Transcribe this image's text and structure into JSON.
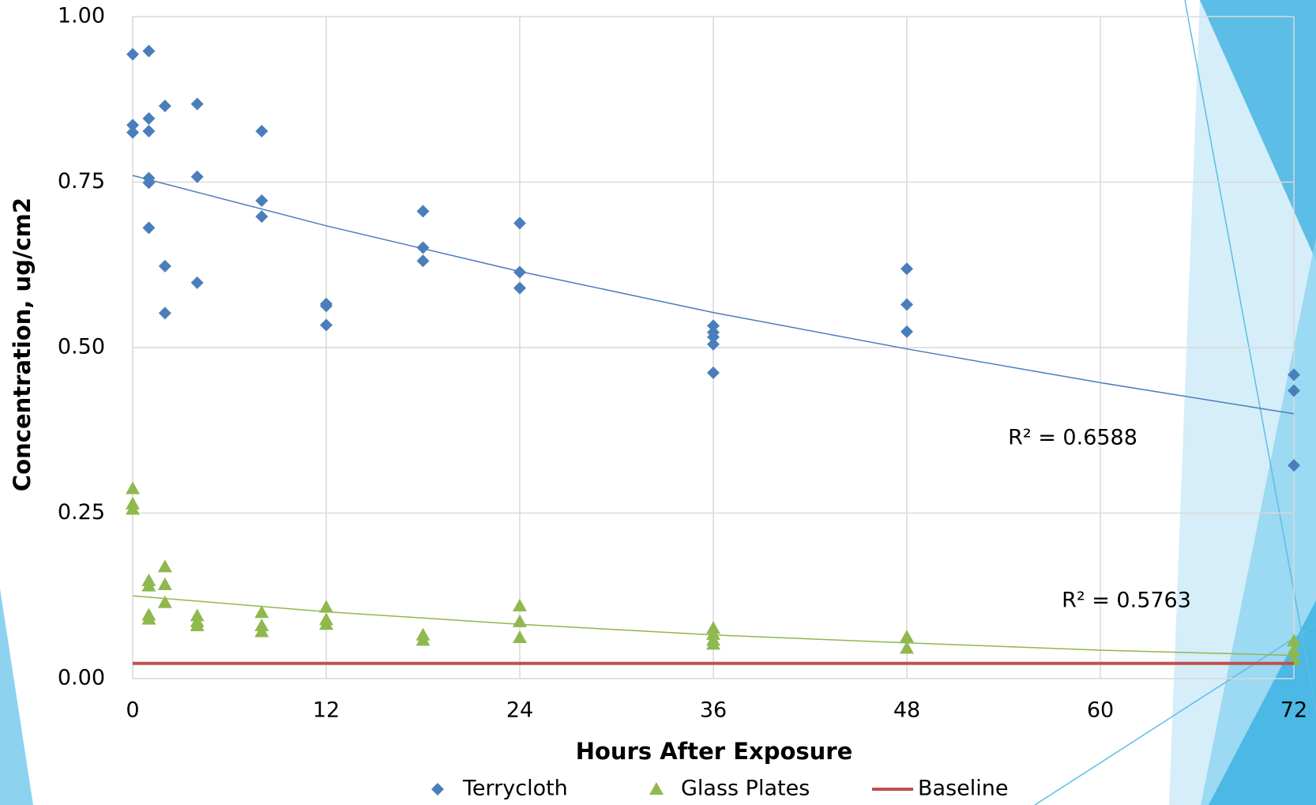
{
  "chart_data": {
    "type": "scatter",
    "xlabel": "Hours After Exposure",
    "ylabel": "Concentration, ug/cm2",
    "xlim": [
      0,
      72
    ],
    "ylim": [
      0,
      1
    ],
    "xticks": [
      0,
      12,
      24,
      36,
      48,
      60,
      72
    ],
    "yticks": [
      {
        "value": 0,
        "label": "0.00"
      },
      {
        "value": 0.25,
        "label": "0.25"
      },
      {
        "value": 0.5,
        "label": "0.50"
      },
      {
        "value": 0.75,
        "label": "0.75"
      },
      {
        "value": 1,
        "label": "1.00"
      }
    ],
    "grid": true,
    "legend": "bottom",
    "series": [
      {
        "name": "Terrycloth",
        "color": "#4a7ebb",
        "marker": "diamond",
        "x": [
          0,
          0,
          0,
          1,
          1,
          1,
          1,
          1,
          1,
          2,
          2,
          2,
          4,
          4,
          4,
          8,
          8,
          8,
          12,
          12,
          12,
          18,
          18,
          18,
          24,
          24,
          24,
          36,
          36,
          36,
          36,
          36,
          48,
          48,
          48,
          72,
          72,
          72
        ],
        "values": [
          0.943,
          0.836,
          0.825,
          0.948,
          0.846,
          0.827,
          0.756,
          0.749,
          0.681,
          0.865,
          0.623,
          0.552,
          0.868,
          0.758,
          0.598,
          0.827,
          0.722,
          0.698,
          0.566,
          0.563,
          0.534,
          0.706,
          0.651,
          0.631,
          0.688,
          0.614,
          0.59,
          0.533,
          0.523,
          0.516,
          0.505,
          0.462,
          0.619,
          0.565,
          0.524,
          0.459,
          0.435,
          0.322
        ],
        "trendline": {
          "x": [
            0,
            12,
            24,
            36,
            48,
            60,
            72
          ],
          "values": [
            0.76,
            0.684,
            0.615,
            0.553,
            0.498,
            0.447,
            0.4
          ],
          "label": "R² = 0.6588"
        }
      },
      {
        "name": "Glass Plates",
        "color": "#8fb84f",
        "marker": "triangle",
        "x": [
          0,
          0,
          0,
          1,
          1,
          1,
          1,
          2,
          2,
          2,
          4,
          4,
          4,
          8,
          8,
          8,
          12,
          12,
          12,
          18,
          18,
          24,
          24,
          24,
          36,
          36,
          36,
          36,
          48,
          48,
          72,
          72,
          72
        ],
        "values": [
          0.287,
          0.264,
          0.256,
          0.148,
          0.14,
          0.096,
          0.09,
          0.169,
          0.142,
          0.115,
          0.095,
          0.086,
          0.08,
          0.1,
          0.08,
          0.071,
          0.108,
          0.089,
          0.082,
          0.066,
          0.058,
          0.11,
          0.086,
          0.062,
          0.076,
          0.067,
          0.058,
          0.052,
          0.063,
          0.046,
          0.057,
          0.042,
          0.029
        ],
        "trendline": {
          "x": [
            0,
            12,
            24,
            36,
            48,
            60,
            72
          ],
          "values": [
            0.125,
            0.101,
            0.082,
            0.066,
            0.054,
            0.043,
            0.035
          ],
          "label": "R² = 0.5763"
        }
      },
      {
        "name": "Baseline",
        "color": "#c0504d",
        "marker": "line",
        "x": [
          0,
          72
        ],
        "values": [
          0.023,
          0.023
        ]
      }
    ]
  }
}
